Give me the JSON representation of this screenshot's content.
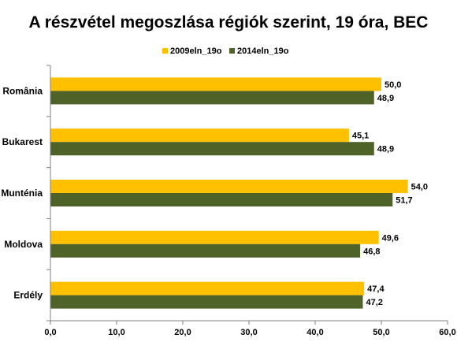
{
  "chart_data": {
    "type": "bar",
    "orientation": "horizontal",
    "title": "A részvétel megoszlása régiók szerint, 19 óra, BEC",
    "categories": [
      "România",
      "Bukarest",
      "Munténia",
      "Moldova",
      "Erdély"
    ],
    "series": [
      {
        "name": "2009eln_19o",
        "color": "#ffc000",
        "values": [
          50.0,
          45.1,
          54.0,
          49.6,
          47.4
        ],
        "labels": [
          "50,0",
          "45,1",
          "54,0",
          "49,6",
          "47,4"
        ]
      },
      {
        "name": "2014eln_19o",
        "color": "#4f6228",
        "values": [
          48.9,
          48.9,
          51.7,
          46.8,
          47.2
        ],
        "labels": [
          "48,9",
          "48,9",
          "51,7",
          "46,8",
          "47,2"
        ]
      }
    ],
    "xlim": [
      0,
      60
    ],
    "xticks": [
      0,
      10,
      20,
      30,
      40,
      50,
      60
    ],
    "xtick_labels": [
      "0,0",
      "10,0",
      "20,0",
      "30,0",
      "40,0",
      "50,0",
      "60,0"
    ],
    "legend_position": "top",
    "grid": false
  }
}
